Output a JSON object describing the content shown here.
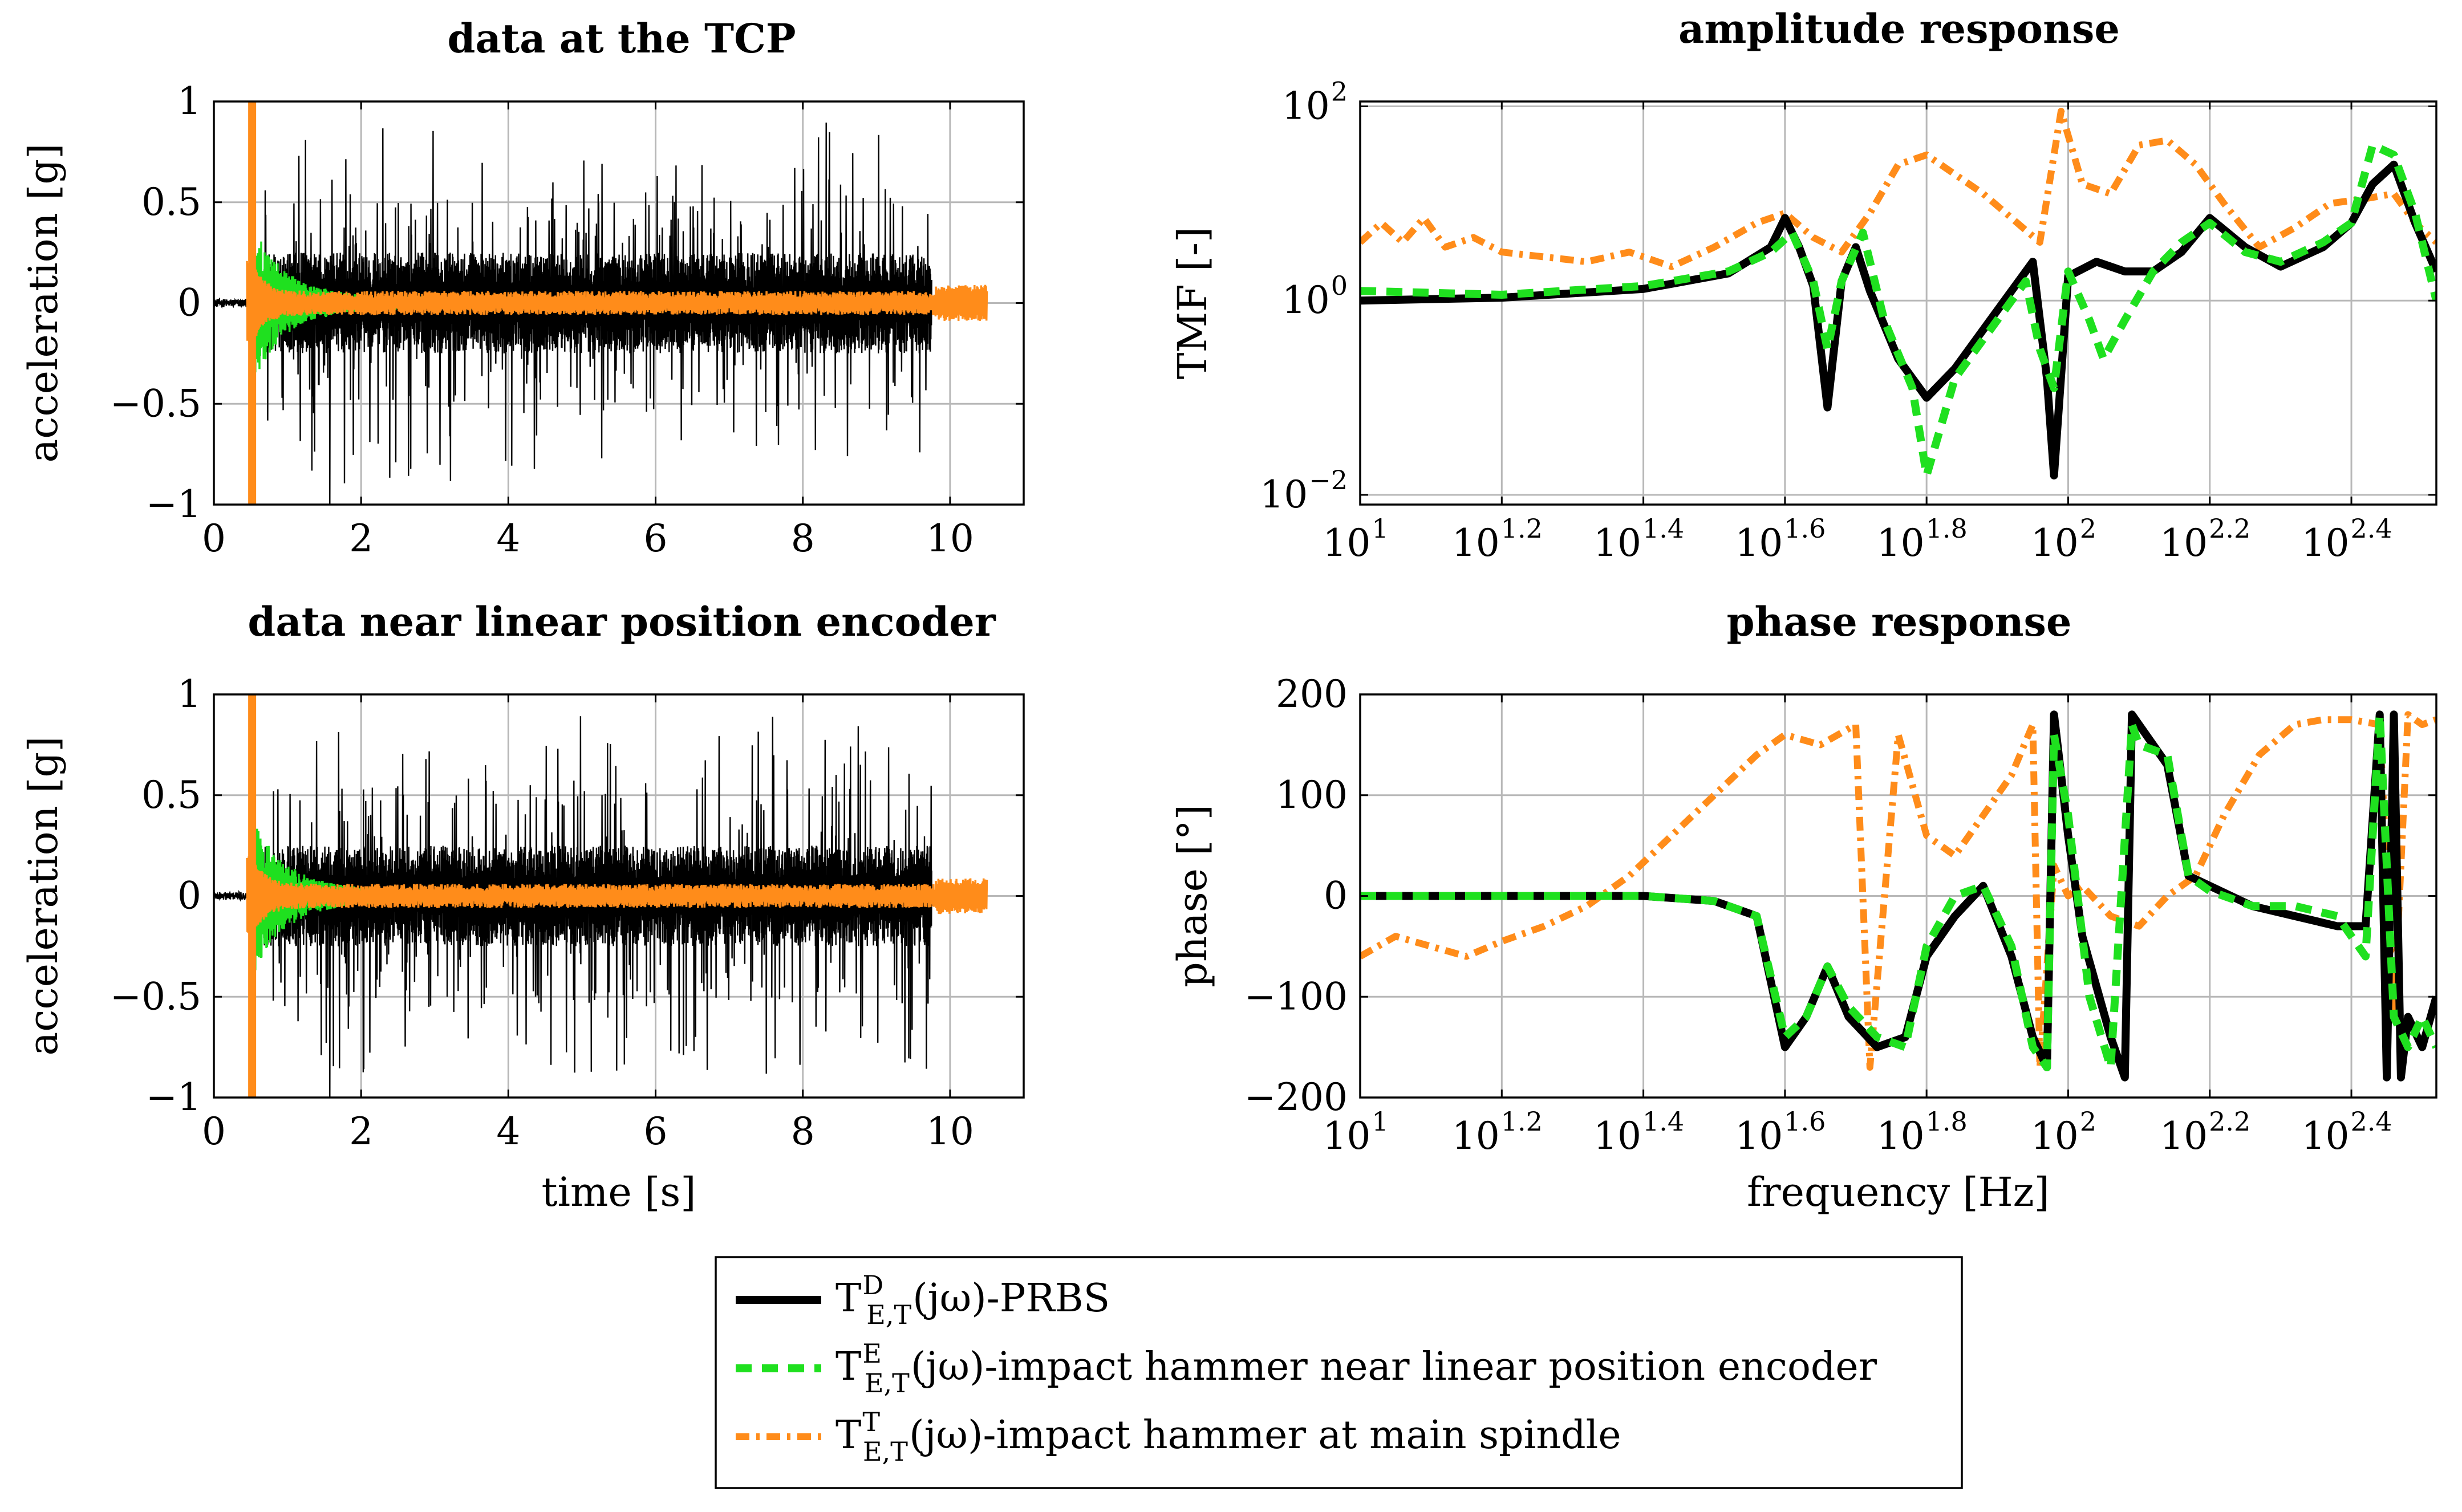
{
  "colors": {
    "prbs": "#000000",
    "encoder": "#1fe01f",
    "spindle": "#ff8c1a",
    "grid": "#b8b8b8"
  },
  "chart_data": [
    {
      "id": "tcp",
      "type": "line",
      "title": "data at the TCP",
      "xlabel": "",
      "ylabel": "acceleration [g]",
      "xlim": [
        0,
        11
      ],
      "ylim": [
        -1,
        1
      ],
      "xticks": [
        0,
        2,
        4,
        6,
        8,
        10
      ],
      "xtick_labels": [
        "0",
        "2",
        "4",
        "6",
        "8",
        "10"
      ],
      "yticks": [
        -1,
        -0.5,
        0,
        0.5,
        1
      ],
      "ytick_labels": [
        "−1",
        "−0.5",
        "0",
        "0.5",
        "1"
      ],
      "grid": true,
      "series": [
        {
          "key": "prbs",
          "x_range": [
            0,
            9.75
          ],
          "active_start": 0.65,
          "typical_amplitude": 0.25,
          "peak_amplitude": 0.9,
          "min_value": -1.0
        },
        {
          "key": "encoder",
          "x_range": [
            0.55,
            3.8
          ],
          "typical_amplitude": 0.03,
          "impact_peak": 0.35
        },
        {
          "key": "spindle",
          "x_range": [
            0.45,
            10.5
          ],
          "typical_amplitude": 0.06,
          "impact_peak": 1.0,
          "impact_min": -1.0,
          "impact_time": 0.52
        }
      ]
    },
    {
      "id": "encoder",
      "type": "line",
      "title": "data near linear position encoder",
      "xlabel": "time [s]",
      "ylabel": "acceleration [g]",
      "xlim": [
        0,
        11
      ],
      "ylim": [
        -1,
        1
      ],
      "xticks": [
        0,
        2,
        4,
        6,
        8,
        10
      ],
      "xtick_labels": [
        "0",
        "2",
        "4",
        "6",
        "8",
        "10"
      ],
      "yticks": [
        -1,
        -0.5,
        0,
        0.5,
        1
      ],
      "ytick_labels": [
        "−1",
        "−0.5",
        "0",
        "0.5",
        "1"
      ],
      "grid": true,
      "series": [
        {
          "key": "prbs",
          "x_range": [
            0,
            9.75
          ],
          "active_start": 0.65,
          "typical_amplitude": 0.25,
          "peak_amplitude": 0.9,
          "min_value": -1.0
        },
        {
          "key": "encoder",
          "x_range": [
            0.55,
            3.8
          ],
          "typical_amplitude": 0.03,
          "impact_peak": 0.35
        },
        {
          "key": "spindle",
          "x_range": [
            0.45,
            10.5
          ],
          "typical_amplitude": 0.06,
          "impact_peak": 1.0,
          "impact_min": -1.0,
          "impact_time": 0.52
        }
      ]
    },
    {
      "id": "amplitude",
      "type": "line",
      "scale": "log-log",
      "title": "amplitude response",
      "xlabel": "",
      "ylabel": "TMF [-]",
      "xlim_log10": [
        1,
        2.52
      ],
      "ylim_log10": [
        -2.1,
        2.05
      ],
      "xticks_log10": [
        1,
        1.2,
        1.4,
        1.6,
        1.8,
        2,
        2.2,
        2.4
      ],
      "xtick_base": [
        "10",
        "10",
        "10",
        "10",
        "10",
        "10",
        "10",
        "10"
      ],
      "xtick_exp": [
        "1",
        "1.2",
        "1.4",
        "1.6",
        "1.8",
        "2",
        "2.2",
        "2.4"
      ],
      "yticks_log10": [
        -2,
        0,
        2
      ],
      "ytick_base": [
        "10",
        "10",
        "10"
      ],
      "ytick_exp": [
        "−2",
        "0",
        "2"
      ],
      "grid": true,
      "series": [
        {
          "key": "prbs",
          "x_log10": [
            1,
            1.2,
            1.4,
            1.52,
            1.58,
            1.6,
            1.62,
            1.64,
            1.66,
            1.68,
            1.7,
            1.72,
            1.76,
            1.8,
            1.84,
            1.88,
            1.92,
            1.95,
            1.97,
            1.98,
            2.0,
            2.04,
            2.08,
            2.12,
            2.16,
            2.2,
            2.25,
            2.3,
            2.36,
            2.4,
            2.43,
            2.46,
            2.49,
            2.52
          ],
          "y_log10": [
            0,
            0.03,
            0.12,
            0.28,
            0.55,
            0.85,
            0.55,
            0.15,
            -1.1,
            0.2,
            0.55,
            0.1,
            -0.6,
            -1.0,
            -0.7,
            -0.3,
            0.1,
            0.4,
            -0.8,
            -1.8,
            0.25,
            0.4,
            0.3,
            0.3,
            0.5,
            0.85,
            0.55,
            0.35,
            0.55,
            0.8,
            1.2,
            1.4,
            0.8,
            0.3
          ]
        },
        {
          "key": "encoder",
          "x_log10": [
            1,
            1.2,
            1.4,
            1.52,
            1.58,
            1.61,
            1.64,
            1.66,
            1.68,
            1.71,
            1.74,
            1.78,
            1.8,
            1.84,
            1.9,
            1.94,
            1.96,
            1.98,
            2.0,
            2.03,
            2.05,
            2.08,
            2.12,
            2.16,
            2.2,
            2.25,
            2.3,
            2.36,
            2.4,
            2.43,
            2.46,
            2.49,
            2.52
          ],
          "y_log10": [
            0.1,
            0.06,
            0.15,
            0.3,
            0.5,
            0.7,
            0.2,
            -0.5,
            0.2,
            0.7,
            -0.2,
            -0.9,
            -1.8,
            -0.8,
            -0.2,
            0.2,
            -0.5,
            -0.9,
            0.3,
            -0.2,
            -0.6,
            -0.2,
            0.3,
            0.6,
            0.8,
            0.5,
            0.4,
            0.6,
            0.8,
            1.6,
            1.5,
            0.9,
            0.0
          ]
        },
        {
          "key": "spindle",
          "x_log10": [
            1,
            1.03,
            1.06,
            1.09,
            1.12,
            1.16,
            1.2,
            1.26,
            1.32,
            1.38,
            1.44,
            1.5,
            1.56,
            1.6,
            1.64,
            1.68,
            1.72,
            1.76,
            1.8,
            1.84,
            1.88,
            1.92,
            1.96,
            1.99,
            2.02,
            2.06,
            2.1,
            2.14,
            2.18,
            2.22,
            2.27,
            2.32,
            2.37,
            2.42,
            2.46,
            2.49,
            2.52
          ],
          "y_log10": [
            0.6,
            0.8,
            0.6,
            0.85,
            0.55,
            0.65,
            0.5,
            0.45,
            0.4,
            0.5,
            0.35,
            0.55,
            0.8,
            0.9,
            0.65,
            0.5,
            0.9,
            1.4,
            1.5,
            1.3,
            1.1,
            0.85,
            0.6,
            1.95,
            1.2,
            1.1,
            1.6,
            1.65,
            1.4,
            1.0,
            0.55,
            0.75,
            1.0,
            1.05,
            1.1,
            0.8,
            0.6
          ]
        }
      ]
    },
    {
      "id": "phase",
      "type": "line",
      "scale": "log-x",
      "title": "phase response",
      "xlabel": "frequency [Hz]",
      "ylabel": "phase [°]",
      "xlim_log10": [
        1,
        2.52
      ],
      "ylim": [
        -200,
        200
      ],
      "xticks_log10": [
        1,
        1.2,
        1.4,
        1.6,
        1.8,
        2,
        2.2,
        2.4
      ],
      "xtick_base": [
        "10",
        "10",
        "10",
        "10",
        "10",
        "10",
        "10",
        "10"
      ],
      "xtick_exp": [
        "1",
        "1.2",
        "1.4",
        "1.6",
        "1.8",
        "2",
        "2.2",
        "2.4"
      ],
      "yticks": [
        -200,
        -100,
        0,
        100,
        200
      ],
      "ytick_labels": [
        "−200",
        "−100",
        "0",
        "100",
        "200"
      ],
      "grid": true,
      "series": [
        {
          "key": "prbs",
          "x_log10": [
            1,
            1.2,
            1.4,
            1.5,
            1.56,
            1.6,
            1.63,
            1.66,
            1.69,
            1.73,
            1.77,
            1.8,
            1.84,
            1.88,
            1.92,
            1.95,
            1.97,
            1.98,
            2.0,
            2.02,
            2.06,
            2.08,
            2.09,
            2.1,
            2.14,
            2.17,
            2.2,
            2.26,
            2.32,
            2.38,
            2.42,
            2.44,
            2.45,
            2.46,
            2.47,
            2.48,
            2.5,
            2.52
          ],
          "y": [
            0,
            0,
            0,
            -5,
            -20,
            -150,
            -120,
            -70,
            -120,
            -150,
            -140,
            -60,
            -20,
            10,
            -60,
            -140,
            -170,
            180,
            60,
            -40,
            -140,
            -180,
            180,
            170,
            130,
            20,
            10,
            -10,
            -20,
            -30,
            -30,
            180,
            -180,
            180,
            -180,
            -120,
            -150,
            -100
          ]
        },
        {
          "key": "encoder",
          "x_log10": [
            1,
            1.2,
            1.4,
            1.5,
            1.56,
            1.6,
            1.63,
            1.66,
            1.69,
            1.73,
            1.77,
            1.8,
            1.84,
            1.88,
            1.92,
            1.95,
            1.97,
            1.98,
            2.0,
            2.03,
            2.06,
            2.09,
            2.1,
            2.14,
            2.17,
            2.2,
            2.26,
            2.32,
            2.38,
            2.42,
            2.44,
            2.46,
            2.48,
            2.5,
            2.52
          ],
          "y": [
            0,
            0,
            0,
            -5,
            -20,
            -140,
            -120,
            -70,
            -110,
            -140,
            -150,
            -50,
            0,
            10,
            -50,
            -150,
            -170,
            160,
            80,
            -100,
            -170,
            170,
            150,
            140,
            20,
            5,
            -10,
            -10,
            -20,
            -60,
            180,
            -120,
            -150,
            -120,
            -150
          ]
        },
        {
          "key": "spindle",
          "x_log10": [
            1,
            1.05,
            1.1,
            1.15,
            1.2,
            1.26,
            1.32,
            1.38,
            1.44,
            1.5,
            1.56,
            1.6,
            1.65,
            1.7,
            1.72,
            1.76,
            1.8,
            1.84,
            1.88,
            1.92,
            1.95,
            1.96,
            1.98,
            2.0,
            2.02,
            2.06,
            2.1,
            2.14,
            2.18,
            2.22,
            2.27,
            2.32,
            2.36,
            2.4,
            2.44,
            2.46,
            2.48,
            2.5,
            2.52
          ],
          "y": [
            -60,
            -40,
            -50,
            -60,
            -45,
            -30,
            -10,
            20,
            60,
            100,
            140,
            160,
            150,
            170,
            -170,
            160,
            60,
            40,
            80,
            120,
            170,
            -170,
            30,
            0,
            10,
            -20,
            -30,
            0,
            20,
            80,
            140,
            170,
            175,
            175,
            170,
            -120,
            180,
            170,
            175
          ]
        }
      ]
    }
  ],
  "legend": {
    "items": [
      {
        "key": "prbs",
        "base": "T",
        "sup": "D",
        "sub": "E,T",
        "text": "(jω)-PRBS"
      },
      {
        "key": "encoder",
        "base": "T",
        "sup": "E",
        "sub": "E,T",
        "text": "(jω)-impact hammer near linear position encoder"
      },
      {
        "key": "spindle",
        "base": "T",
        "sup": "T",
        "sub": "E,T",
        "text": "(jω)-impact hammer at main spindle"
      }
    ]
  }
}
